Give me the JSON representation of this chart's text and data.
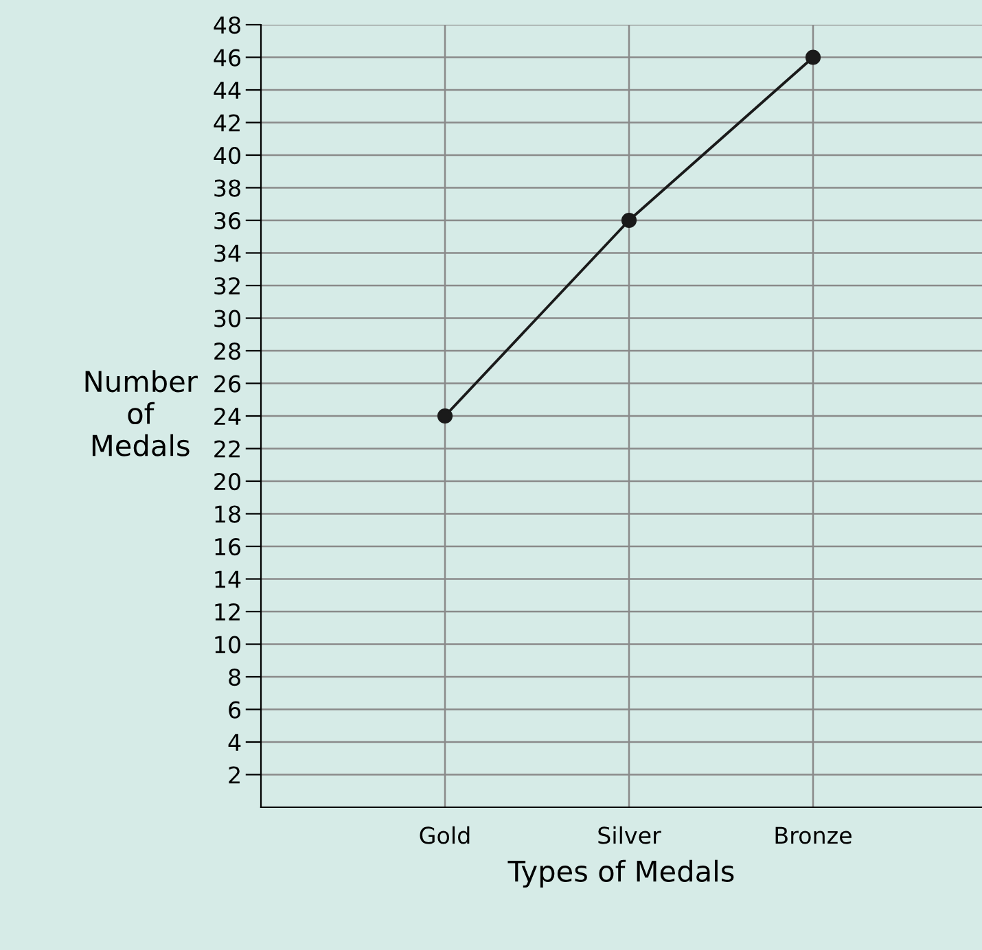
{
  "chart_data": {
    "type": "line",
    "xlabel": "Types of Medals",
    "ylabel": "Number\nof\nMedals",
    "categories": [
      "Gold",
      "Silver",
      "Bronze"
    ],
    "series": [
      {
        "color": "#1a1a1a",
        "values": [
          24,
          36,
          46
        ]
      }
    ],
    "ylim": [
      0,
      48
    ],
    "yticks": [
      2,
      4,
      6,
      8,
      10,
      12,
      14,
      16,
      18,
      20,
      22,
      24,
      26,
      28,
      30,
      32,
      34,
      36,
      38,
      40,
      42,
      44,
      46,
      48
    ],
    "grid": true,
    "marker": "circle",
    "line_style": "solid"
  }
}
